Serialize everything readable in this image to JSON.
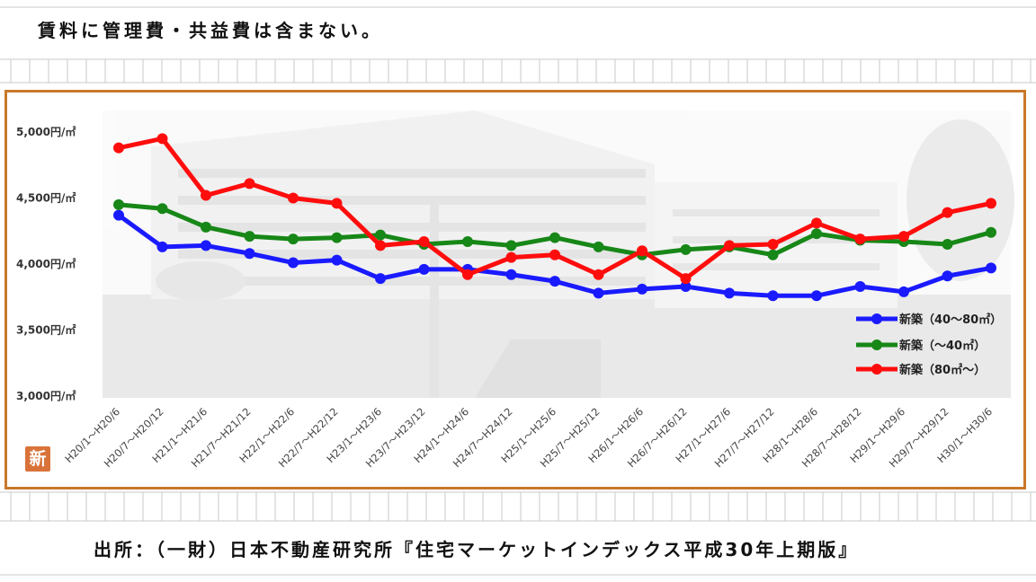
{
  "note": "賃料に管理費・共益費は含まない。",
  "source": "出所：（一財）日本不動産研究所『住宅マーケットインデックス平成30年上期版』",
  "badge": "新",
  "chart_data": {
    "type": "line",
    "title": "",
    "xlabel": "",
    "ylabel": "",
    "ylim": [
      3000,
      5000
    ],
    "y_ticks": [
      3000,
      3500,
      4000,
      4500,
      5000
    ],
    "y_tick_labels": [
      "3,000円/㎡",
      "3,500円/㎡",
      "4,000円/㎡",
      "4,500円/㎡",
      "5,000円/㎡"
    ],
    "grid": false,
    "legend_position": "bottom-right",
    "categories": [
      "H20/1～H20/6",
      "H20/7～H20/12",
      "H21/1～H21/6",
      "H21/7～H21/12",
      "H22/1～H22/6",
      "H22/7～H22/12",
      "H23/1～H23/6",
      "H23/7～H23/12",
      "H24/1～H24/6",
      "H24/7～H24/12",
      "H25/1～H25/6",
      "H25/7～H25/12",
      "H26/1～H26/6",
      "H26/7～H26/12",
      "H27/1～H27/6",
      "H27/7～H27/12",
      "H28/1～H28/6",
      "H28/7～H28/12",
      "H29/1～H29/6",
      "H29/7～H29/12",
      "H30/1～H30/6"
    ],
    "series": [
      {
        "name": "新築（40～80㎡）",
        "color": "#1a1aff",
        "values": [
          4370,
          4130,
          4140,
          4080,
          4010,
          4030,
          3890,
          3960,
          3960,
          3920,
          3870,
          3780,
          3810,
          3830,
          3780,
          3760,
          3760,
          3830,
          3790,
          3910,
          3970
        ]
      },
      {
        "name": "新築（～40㎡）",
        "color": "#178717",
        "values": [
          4450,
          4420,
          4280,
          4210,
          4190,
          4200,
          4220,
          4150,
          4170,
          4140,
          4200,
          4130,
          4070,
          4110,
          4130,
          4070,
          4230,
          4180,
          4170,
          4150,
          4240
        ]
      },
      {
        "name": "新築（80㎡～）",
        "color": "#ff0d0d",
        "values": [
          4880,
          4950,
          4520,
          4610,
          4500,
          4460,
          4140,
          4170,
          3920,
          4050,
          4070,
          3920,
          4100,
          3890,
          4140,
          4150,
          4310,
          4190,
          4210,
          4390,
          4460
        ]
      }
    ]
  }
}
